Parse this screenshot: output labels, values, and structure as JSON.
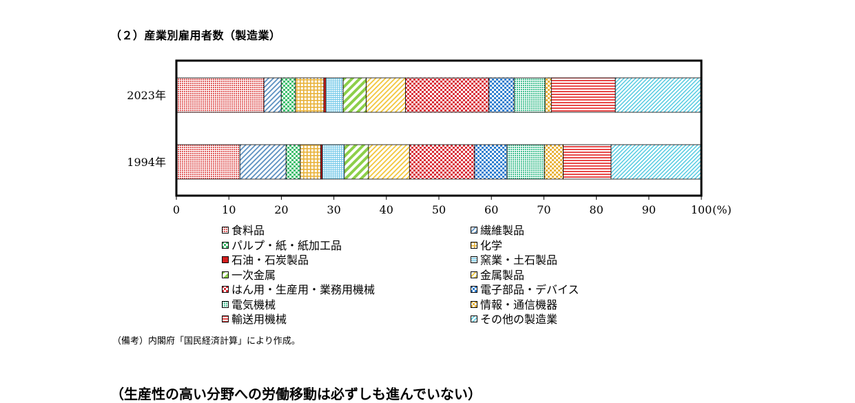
{
  "section_title": "（２）産業別雇用者数（製造業）",
  "note": "（備考）内閣府「国民経済計算」により作成。",
  "next_heading": "（生産性の高い分野への労働移動は必ずしも進んでいない）",
  "chart_data": {
    "type": "bar",
    "orientation": "horizontal",
    "stacked": "percent",
    "categories": [
      "2023年",
      "1994年"
    ],
    "x_ticks": [
      "0",
      "10",
      "20",
      "30",
      "40",
      "50",
      "60",
      "70",
      "80",
      "90",
      "100"
    ],
    "x_unit": "(%)",
    "xlim": [
      0,
      100
    ],
    "legend_position": "bottom",
    "series": [
      {
        "name": "食料品",
        "color": "#e05a5a",
        "pattern": "dots",
        "values": [
          16.7,
          12.1
        ]
      },
      {
        "name": "繊維製品",
        "color": "#5a8fc0",
        "pattern": "diag",
        "values": [
          3.3,
          8.8
        ]
      },
      {
        "name": "パルプ・紙・紙加工品",
        "color": "#3fbf6f",
        "pattern": "check",
        "values": [
          2.7,
          2.7
        ]
      },
      {
        "name": "化学",
        "color": "#e8b23a",
        "pattern": "grid",
        "values": [
          5.4,
          3.9
        ]
      },
      {
        "name": "石油・石炭製品",
        "color": "#d42020",
        "pattern": "solid",
        "values": [
          0.4,
          0.3
        ]
      },
      {
        "name": "窯業・土石製品",
        "color": "#72c8e8",
        "pattern": "grid-fine",
        "values": [
          3.3,
          4.2
        ]
      },
      {
        "name": "一次金属",
        "color": "#8dcf4a",
        "pattern": "diag-thick",
        "values": [
          4.4,
          4.6
        ]
      },
      {
        "name": "金属製品",
        "color": "#f2c53a",
        "pattern": "diag",
        "values": [
          7.5,
          7.8
        ]
      },
      {
        "name": "はん用・生産用・業務用機械",
        "color": "#d9303a",
        "pattern": "check",
        "values": [
          15.9,
          12.4
        ]
      },
      {
        "name": "電子部品・デバイス",
        "color": "#2f7fcf",
        "pattern": "check",
        "values": [
          4.8,
          6.2
        ]
      },
      {
        "name": "電気機械",
        "color": "#3fbf8f",
        "pattern": "dots",
        "values": [
          5.9,
          7.1
        ]
      },
      {
        "name": "情報・通信機器",
        "color": "#e8b23a",
        "pattern": "check",
        "values": [
          1.2,
          3.6
        ]
      },
      {
        "name": "輸送用機械",
        "color": "#e84a4a",
        "pattern": "hlines",
        "values": [
          12.2,
          9.1
        ]
      },
      {
        "name": "その他の製造業",
        "color": "#4ac8e0",
        "pattern": "diag-fine",
        "values": [
          16.4,
          17.2
        ]
      }
    ]
  }
}
